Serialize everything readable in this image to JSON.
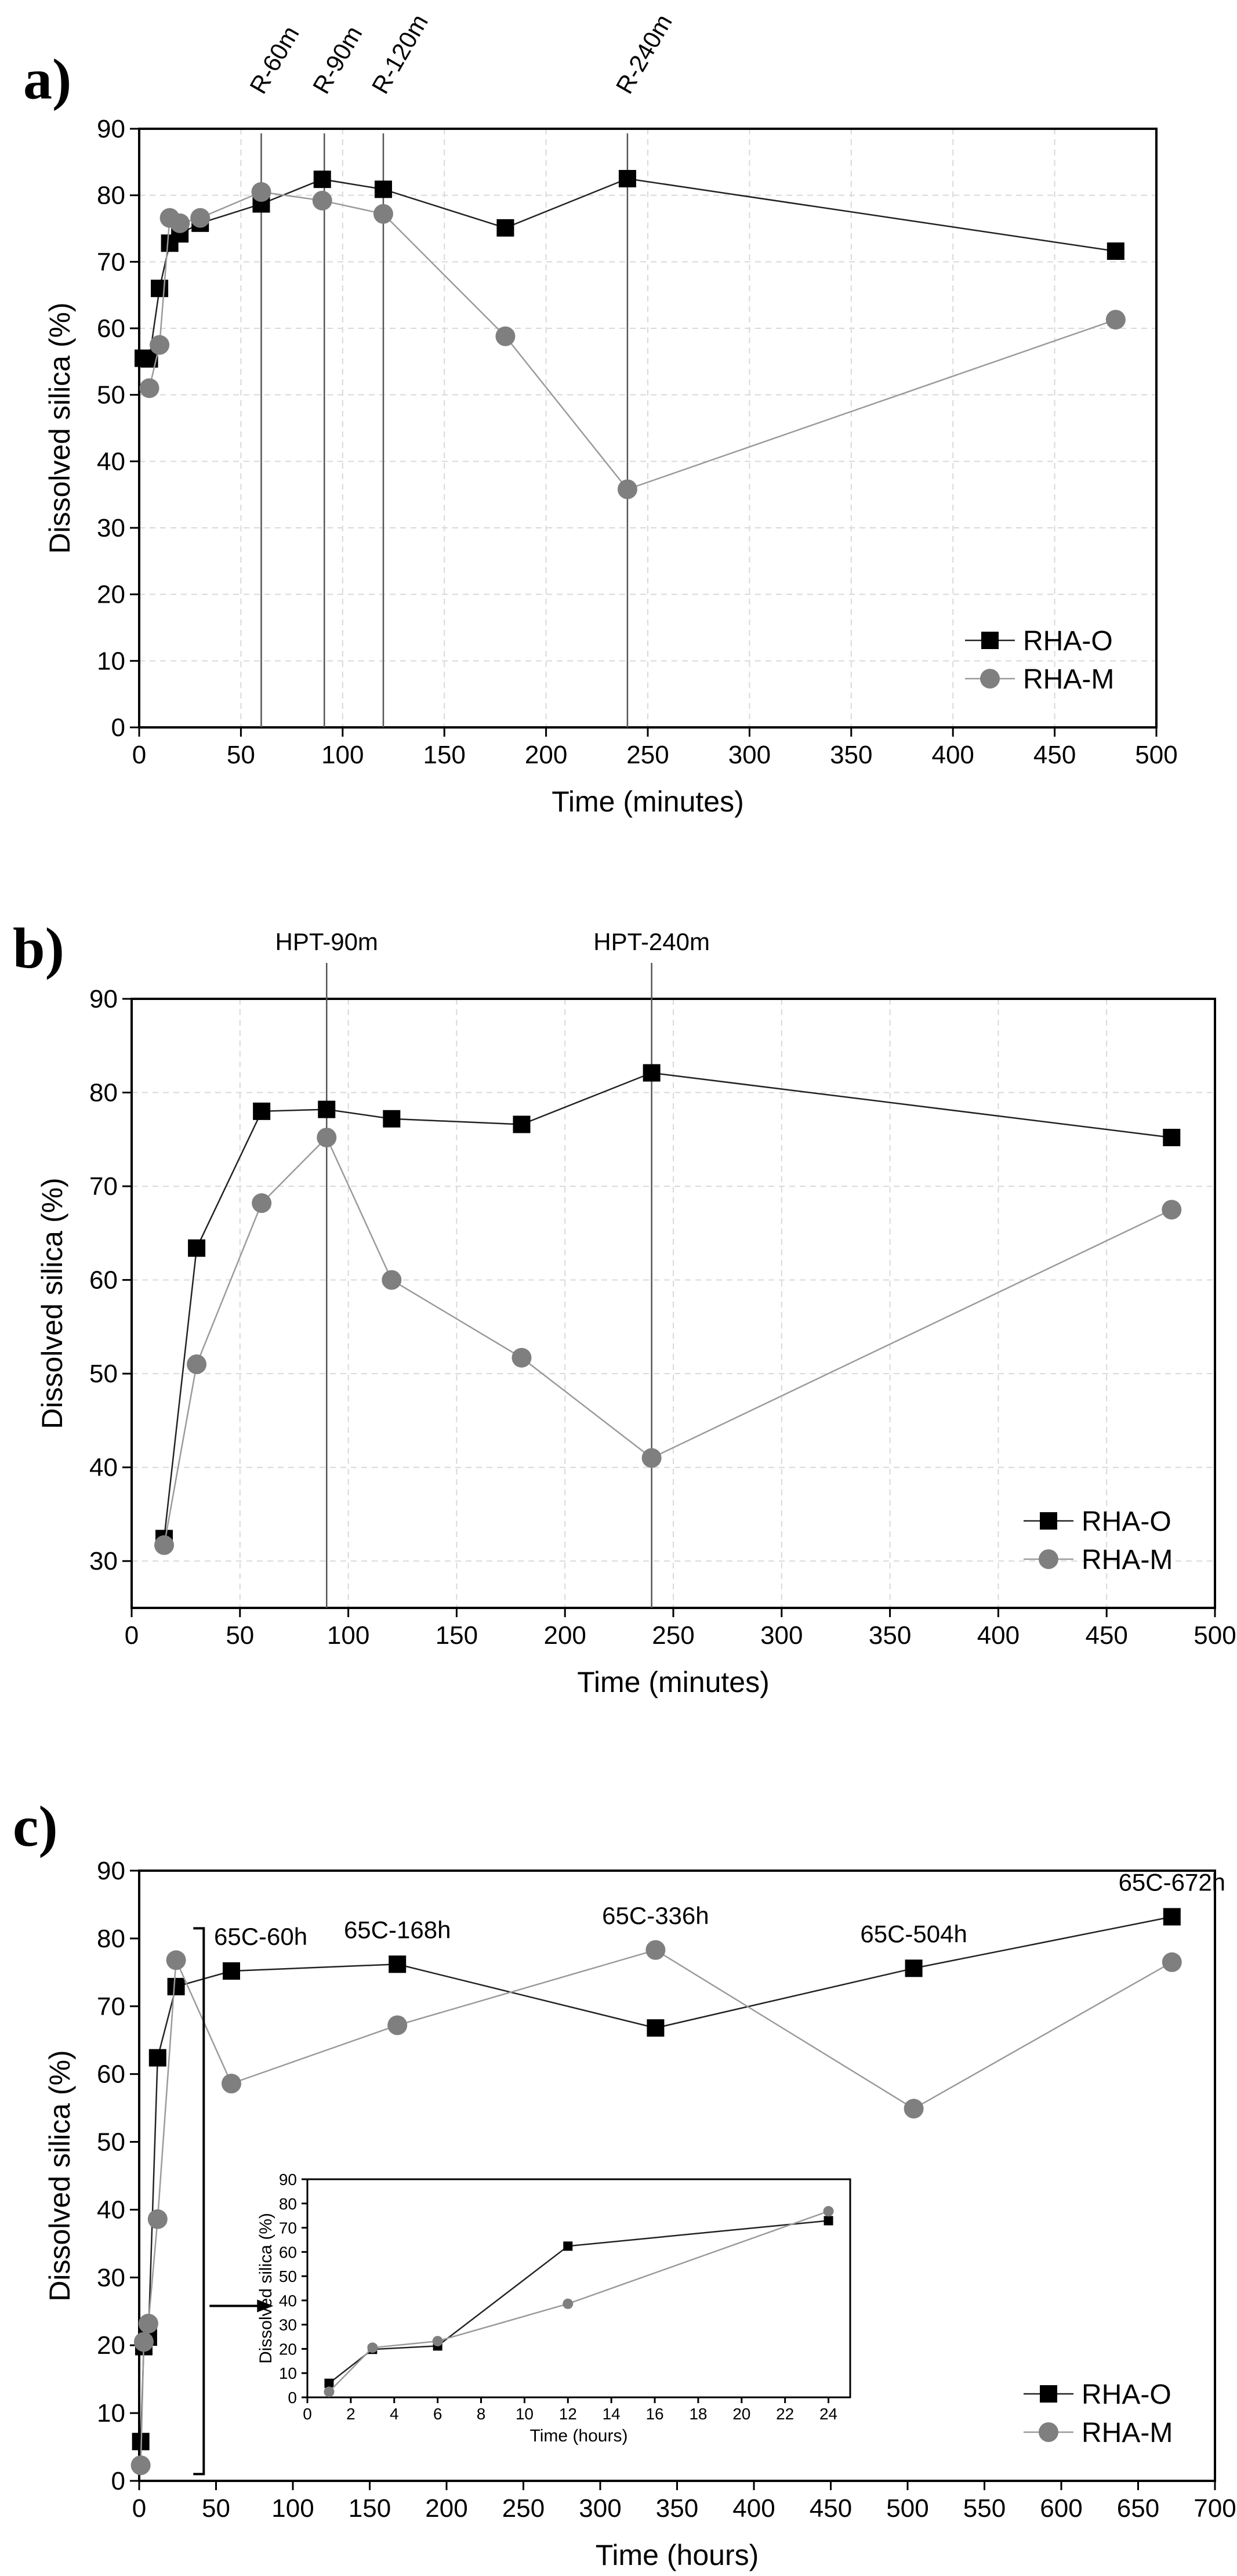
{
  "chart_data": [
    {
      "type": "line",
      "panel_label": "a)",
      "xlabel": "Time (minutes)",
      "ylabel": "Dissolved silica (%)",
      "xlim": [
        0,
        500
      ],
      "ylim": [
        0,
        90
      ],
      "xticks": [
        0,
        50,
        100,
        150,
        200,
        250,
        300,
        350,
        400,
        450,
        500
      ],
      "yticks": [
        0,
        10,
        20,
        30,
        40,
        50,
        60,
        70,
        80,
        90
      ],
      "grid": true,
      "legend": "bottom-right",
      "series": [
        {
          "name": "RHA-O",
          "marker": "square",
          "color": "#000000",
          "x": [
            2,
            5,
            10,
            15,
            20,
            30,
            60,
            90,
            120,
            180,
            240,
            480
          ],
          "y": [
            55.5,
            55.4,
            66.0,
            72.8,
            74.2,
            75.8,
            78.7,
            82.4,
            80.9,
            75.1,
            82.5,
            71.6
          ]
        },
        {
          "name": "RHA-M",
          "marker": "circle",
          "color": "#7f7f7f",
          "x": [
            5,
            10,
            15,
            20,
            30,
            60,
            90,
            120,
            180,
            240,
            480
          ],
          "y": [
            51.0,
            57.5,
            76.6,
            75.8,
            76.6,
            80.5,
            79.2,
            77.2,
            58.8,
            35.8,
            61.3
          ]
        }
      ],
      "annotations": [
        {
          "x": 60,
          "label": "R-60m"
        },
        {
          "x": 91,
          "label": "R-90m"
        },
        {
          "x": 120,
          "label": "R-120m"
        },
        {
          "x": 240,
          "label": "R-240m"
        }
      ]
    },
    {
      "type": "line",
      "panel_label": "b)",
      "xlabel": "Time (minutes)",
      "ylabel": "Dissolved silica (%)",
      "xlim": [
        0,
        500
      ],
      "ylim": [
        25,
        90
      ],
      "xticks": [
        0,
        50,
        100,
        150,
        200,
        250,
        300,
        350,
        400,
        450,
        500
      ],
      "yticks": [
        30,
        40,
        50,
        60,
        70,
        80,
        90
      ],
      "grid": true,
      "legend": "bottom-right",
      "series": [
        {
          "name": "RHA-O",
          "marker": "square",
          "color": "#000000",
          "x": [
            15,
            30,
            60,
            90,
            120,
            180,
            240,
            480
          ],
          "y": [
            32.4,
            63.4,
            78.0,
            78.2,
            77.2,
            76.6,
            82.1,
            75.2
          ]
        },
        {
          "name": "RHA-M",
          "marker": "circle",
          "color": "#7f7f7f",
          "x": [
            15,
            30,
            60,
            90,
            120,
            180,
            240,
            480
          ],
          "y": [
            31.7,
            51.0,
            68.2,
            75.2,
            60.0,
            51.7,
            41.0,
            67.5
          ]
        }
      ],
      "annotations": [
        {
          "x": 90,
          "label": "HPT-90m"
        },
        {
          "x": 240,
          "label": "HPT-240m"
        }
      ]
    },
    {
      "type": "line",
      "panel_label": "c)",
      "xlabel": "Time (hours)",
      "ylabel": "Dissolved silica (%)",
      "xlim": [
        0,
        700
      ],
      "ylim": [
        0,
        90
      ],
      "xticks": [
        0,
        50,
        100,
        150,
        200,
        250,
        300,
        350,
        400,
        450,
        500,
        550,
        600,
        650,
        700
      ],
      "yticks": [
        0,
        10,
        20,
        30,
        40,
        50,
        60,
        70,
        80,
        90
      ],
      "grid": false,
      "legend": "bottom-right",
      "series": [
        {
          "name": "RHA-O",
          "marker": "square",
          "color": "#000000",
          "x": [
            1,
            3,
            6,
            12,
            24,
            60,
            168,
            336,
            504,
            672
          ],
          "y": [
            5.8,
            19.8,
            21.2,
            62.4,
            72.9,
            75.2,
            76.2,
            66.8,
            75.6,
            83.2
          ]
        },
        {
          "name": "RHA-M",
          "marker": "circle",
          "color": "#7f7f7f",
          "x": [
            1,
            3,
            6,
            12,
            24,
            60,
            168,
            336,
            504,
            672
          ],
          "y": [
            2.3,
            20.5,
            23.2,
            38.6,
            76.8,
            58.6,
            67.2,
            78.3,
            54.9,
            76.5
          ]
        }
      ],
      "annotations": [
        {
          "x": 60,
          "label": "65C-60h"
        },
        {
          "x": 168,
          "label": "65C-168h"
        },
        {
          "x": 336,
          "label": "65C-336h"
        },
        {
          "x": 504,
          "label": "65C-504h"
        },
        {
          "x": 672,
          "label": "65C-672h"
        }
      ],
      "inset": {
        "xlabel": "Time (hours)",
        "ylabel": "Dissolved silica (%)",
        "xlim": [
          0,
          25
        ],
        "ylim": [
          0,
          90
        ],
        "xticks": [
          0,
          2,
          4,
          6,
          8,
          10,
          12,
          14,
          16,
          18,
          20,
          22,
          24
        ],
        "yticks": [
          0,
          10,
          20,
          30,
          40,
          50,
          60,
          70,
          80,
          90
        ],
        "series": [
          {
            "name": "RHA-O",
            "marker": "square",
            "color": "#000000",
            "x": [
              1,
              3,
              6,
              12,
              24
            ],
            "y": [
              5.8,
              19.8,
              21.2,
              62.4,
              72.9
            ]
          },
          {
            "name": "RHA-M",
            "marker": "circle",
            "color": "#7f7f7f",
            "x": [
              1,
              3,
              6,
              12,
              24
            ],
            "y": [
              2.3,
              20.5,
              23.2,
              38.6,
              76.8
            ]
          }
        ]
      }
    }
  ]
}
